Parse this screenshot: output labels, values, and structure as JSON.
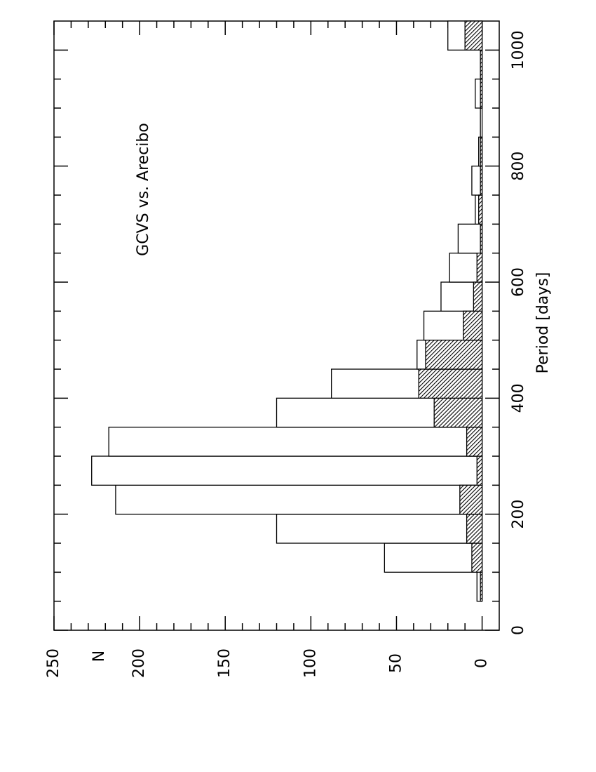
{
  "chart_data": {
    "type": "histogram",
    "annotation": "GCVS vs. Arecibo",
    "x_label": "Period [days]",
    "y_label": "N",
    "bins": [
      50,
      100,
      150,
      200,
      250,
      300,
      350,
      400,
      450,
      500,
      550,
      600,
      650,
      700,
      750,
      800,
      850,
      900,
      950,
      1000,
      1050
    ],
    "series": [
      {
        "pattern": "none",
        "color": "#000000",
        "values": [
          3,
          57,
          120,
          214,
          228,
          218,
          120,
          88,
          38,
          34,
          24,
          19,
          14,
          4,
          6,
          2,
          1,
          4,
          1,
          20
        ]
      },
      {
        "pattern": "hatch",
        "color": "#000000",
        "values": [
          1,
          6,
          9,
          13,
          3,
          9,
          28,
          37,
          33,
          11,
          5,
          3,
          1,
          2,
          1,
          1,
          0,
          1,
          1,
          10
        ]
      }
    ],
    "xlim": [
      0,
      1050
    ],
    "xticks": [
      0,
      200,
      400,
      600,
      800,
      1000
    ],
    "xminorticks": [
      50,
      100,
      150,
      250,
      300,
      350,
      450,
      500,
      550,
      650,
      700,
      750,
      850,
      900,
      950
    ],
    "ylim": [
      -10,
      250
    ],
    "yticks": [
      0,
      50,
      100,
      150,
      200,
      250
    ],
    "yminorticks": [
      10,
      20,
      30,
      40,
      60,
      70,
      80,
      90,
      110,
      120,
      130,
      140,
      160,
      170,
      180,
      190,
      210,
      220,
      230,
      240
    ]
  }
}
